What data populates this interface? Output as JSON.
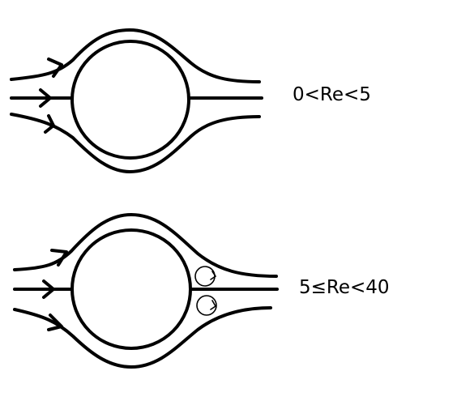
{
  "panels": [
    {
      "label": "0<Re<5"
    },
    {
      "label": "5≤Re<40"
    }
  ],
  "colors": {
    "ink": "#000000",
    "background": "#ffffff"
  }
}
